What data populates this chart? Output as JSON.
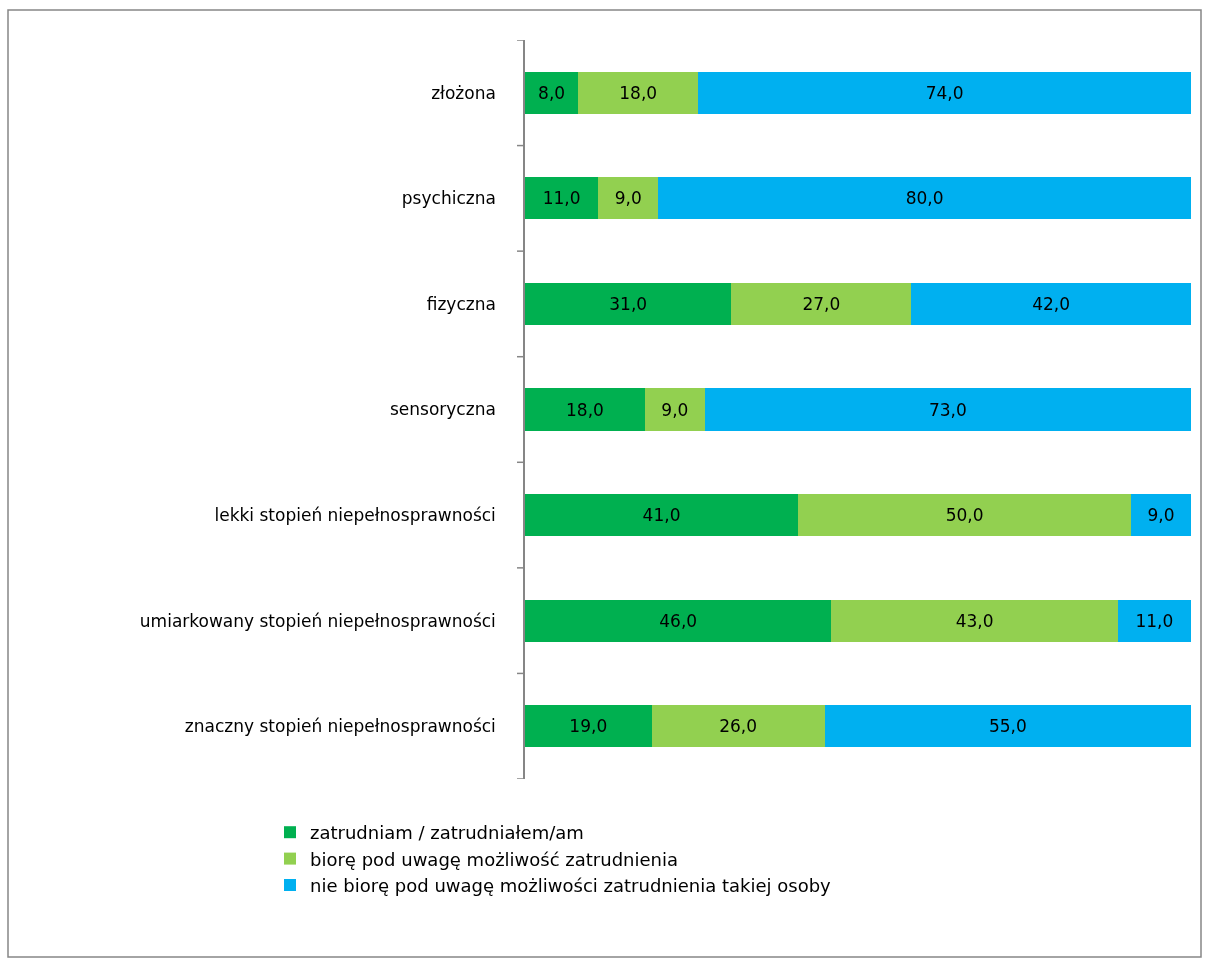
{
  "chart_data": {
    "type": "bar",
    "orientation": "horizontal",
    "stacked": true,
    "categories": [
      "złożona",
      "psychiczna",
      "fizyczna",
      "sensoryczna",
      "lekki stopień niepełnosprawności",
      "umiarkowany stopień niepełnosprawności",
      "znaczny stopień niepełnosprawności"
    ],
    "series": [
      {
        "name": "zatrudniam / zatrudniałem/am",
        "color": "#00b050",
        "values": [
          8,
          11,
          31,
          18,
          41,
          46,
          19
        ],
        "value_labels": [
          "8,0",
          "11,0",
          "31,0",
          "18,0",
          "41,0",
          "46,0",
          "19,0"
        ]
      },
      {
        "name": "biorę pod uwagę możliwość zatrudnienia",
        "color": "#92d050",
        "values": [
          18,
          9,
          27,
          9,
          50,
          43,
          26
        ],
        "value_labels": [
          "18,0",
          "9,0",
          "27,0",
          "9,0",
          "50,0",
          "43,0",
          "26,0"
        ]
      },
      {
        "name": "nie biorę pod uwagę możliwości zatrudnienia takiej osoby",
        "color": "#00b0f0",
        "values": [
          74,
          80,
          42,
          73,
          9,
          11,
          55
        ],
        "value_labels": [
          "74,0",
          "80,0",
          "42,0",
          "73,0",
          "9,0",
          "11,0",
          "55,0"
        ]
      }
    ],
    "xlim": [
      0,
      100
    ],
    "legend": "bottom",
    "tick_labels": "y"
  }
}
